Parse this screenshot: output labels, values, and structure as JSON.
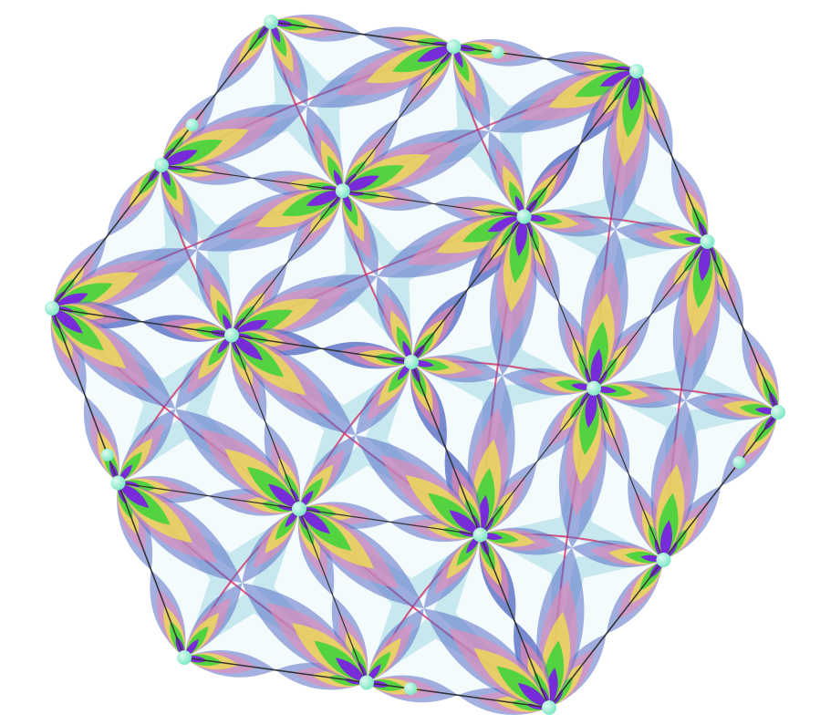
{
  "scene": {
    "subject": "kaleidoscope-cube",
    "background_color": "#ffffff",
    "edge_color": "#333333",
    "node_color": "#7fe8c8",
    "node_highlight": "#dffaf0",
    "pattern_colors": {
      "petal_blue": "#5a6fc4",
      "petal_pink": "#e98ab8",
      "petal_yellow": "#f3e24a",
      "petal_green": "#38d43a",
      "core_violet": "#7a22e0",
      "arc_red": "#d81e5b",
      "star_cyan": "#bfe4ec",
      "star_white": "#f4fbfd"
    }
  }
}
